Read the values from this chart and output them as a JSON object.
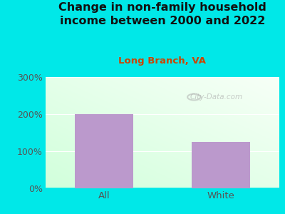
{
  "title": "Change in non-family household\nincome between 2000 and 2022",
  "subtitle": "Long Branch, VA",
  "categories": [
    "All",
    "White"
  ],
  "values": [
    200,
    125
  ],
  "bar_color": "#bb99cc",
  "title_fontsize": 11.5,
  "subtitle_fontsize": 9.5,
  "subtitle_color": "#cc4400",
  "title_color": "#111111",
  "tick_color": "#555555",
  "bg_outer": "#00e8e8",
  "ylim": [
    0,
    300
  ],
  "yticks": [
    0,
    100,
    200,
    300
  ],
  "ytick_labels": [
    "0%",
    "100%",
    "200%",
    "300%"
  ],
  "watermark": "City-Data.com"
}
